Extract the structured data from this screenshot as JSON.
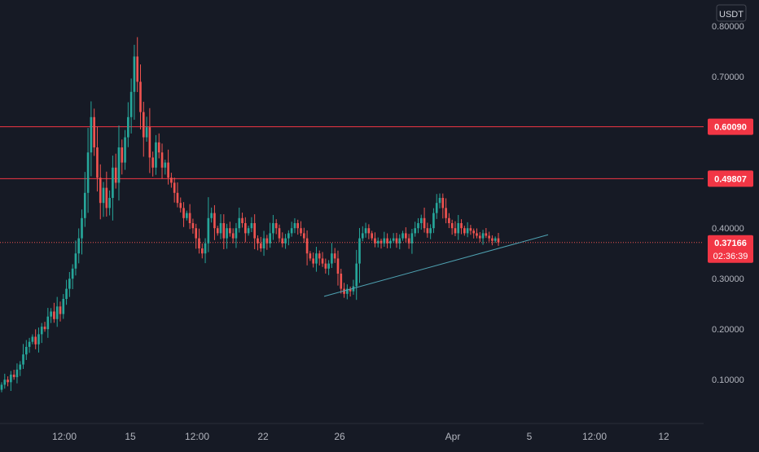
{
  "currency_badge": "USDT",
  "colors": {
    "background": "#161a25",
    "up": "#26a69a",
    "down": "#ef5350",
    "level_line": "#f23645",
    "trendline": "#4fa3b3",
    "axis_text": "#b2b5be",
    "price_label_bg": "#f23645",
    "price_label_text": "#ffffff"
  },
  "chart_data": {
    "type": "candlestick",
    "title": "",
    "xlabel": "",
    "ylabel": "",
    "ylim": [
      0.05,
      0.82
    ],
    "grid": false,
    "y_ticks": [
      "0.80000",
      "0.70000",
      "0.40000",
      "0.30000",
      "0.20000",
      "0.10000"
    ],
    "x_ticks": [
      "12:00",
      "15",
      "12:00",
      "22",
      "26",
      "Apr",
      "5",
      "12:00",
      "12"
    ],
    "horizontal_levels": [
      {
        "value": 0.6009,
        "label": "0.60090"
      },
      {
        "value": 0.49807,
        "label": "0.49807"
      }
    ],
    "current_price": {
      "value": 0.37166,
      "label": "0.37166",
      "countdown": "02:36:39"
    },
    "trendline": {
      "start_value": 0.265,
      "end_value": 0.387
    },
    "candles_close": [
      0.09,
      0.1,
      0.095,
      0.11,
      0.105,
      0.12,
      0.13,
      0.15,
      0.165,
      0.175,
      0.185,
      0.17,
      0.19,
      0.205,
      0.2,
      0.225,
      0.235,
      0.22,
      0.245,
      0.23,
      0.26,
      0.28,
      0.3,
      0.32,
      0.35,
      0.38,
      0.42,
      0.47,
      0.55,
      0.62,
      0.56,
      0.5,
      0.45,
      0.48,
      0.44,
      0.46,
      0.52,
      0.49,
      0.56,
      0.53,
      0.58,
      0.62,
      0.67,
      0.74,
      0.69,
      0.63,
      0.58,
      0.6,
      0.54,
      0.52,
      0.57,
      0.55,
      0.52,
      0.53,
      0.5,
      0.49,
      0.47,
      0.45,
      0.44,
      0.42,
      0.43,
      0.41,
      0.4,
      0.38,
      0.36,
      0.35,
      0.37,
      0.42,
      0.43,
      0.4,
      0.39,
      0.41,
      0.38,
      0.4,
      0.39,
      0.38,
      0.4,
      0.42,
      0.41,
      0.39,
      0.4,
      0.41,
      0.38,
      0.37,
      0.36,
      0.38,
      0.37,
      0.39,
      0.41,
      0.4,
      0.38,
      0.37,
      0.38,
      0.39,
      0.4,
      0.41,
      0.4,
      0.39,
      0.38,
      0.35,
      0.34,
      0.33,
      0.35,
      0.34,
      0.33,
      0.32,
      0.33,
      0.35,
      0.34,
      0.31,
      0.28,
      0.27,
      0.28,
      0.275,
      0.285,
      0.33,
      0.38,
      0.39,
      0.4,
      0.39,
      0.38,
      0.37,
      0.375,
      0.37,
      0.38,
      0.37,
      0.375,
      0.38,
      0.37,
      0.38,
      0.39,
      0.38,
      0.37,
      0.39,
      0.4,
      0.41,
      0.42,
      0.4,
      0.39,
      0.4,
      0.43,
      0.45,
      0.46,
      0.44,
      0.42,
      0.41,
      0.4,
      0.39,
      0.41,
      0.4,
      0.39,
      0.4,
      0.395,
      0.39,
      0.385,
      0.38,
      0.39,
      0.385,
      0.38,
      0.375,
      0.38,
      0.372
    ]
  }
}
